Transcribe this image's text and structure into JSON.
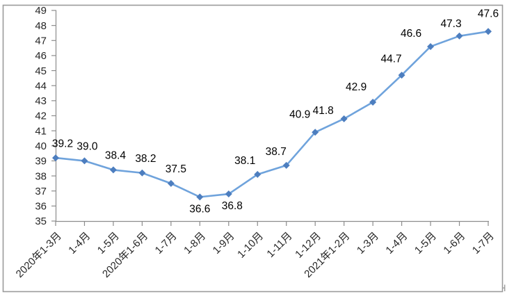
{
  "chart_data": {
    "type": "line",
    "categories": [
      "2020年1-3月",
      "1-4月",
      "1-5月",
      "2020年1-6月",
      "1-7月",
      "1-8月",
      "1-9月",
      "1-10月",
      "1-11月",
      "1-12月",
      "2021年1-2月",
      "1-3月",
      "1-4月",
      "1-5月",
      "1-6月",
      "1-7月"
    ],
    "values": [
      39.2,
      39.0,
      38.4,
      38.2,
      37.5,
      36.6,
      36.8,
      38.1,
      38.7,
      40.9,
      41.8,
      42.9,
      44.7,
      46.6,
      47.3,
      47.6
    ],
    "data_labels": [
      "39.2",
      "39.0",
      "38.4",
      "38.2",
      "37.5",
      "36.6",
      "36.8",
      "38.1",
      "38.7",
      "40.9",
      "41.8",
      "42.9",
      "44.7",
      "46.6",
      "47.3",
      "47.6"
    ],
    "title": "",
    "xlabel": "",
    "ylabel": "",
    "ylim": [
      35,
      49
    ],
    "y_tick_step": 1,
    "y_tick_labels": [
      "35",
      "36",
      "37",
      "38",
      "39",
      "40",
      "41",
      "42",
      "43",
      "44",
      "45",
      "46",
      "47",
      "48",
      "49"
    ],
    "x_tick_rotation": -45,
    "grid": false,
    "legend": "none",
    "marker_shape": "diamond",
    "colors": {
      "line": "#6FA3DC",
      "marker": "#4D7EBF",
      "axis": "#8C8C8C",
      "tick_label": "#262626",
      "data_label": "#000000",
      "border": "#9B9B9B",
      "background": "#FFFFFF"
    }
  }
}
